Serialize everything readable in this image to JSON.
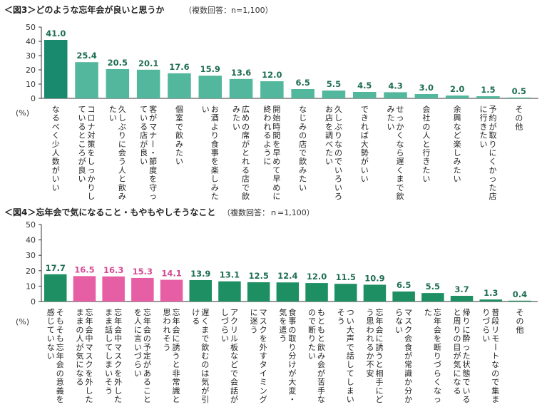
{
  "colors": {
    "chart1_primary": "#1a8a6e",
    "chart1_secondary": "#52b79c",
    "chart2_pink": "#e65ea3",
    "chart2_green": "#1e8f63",
    "label_green": "#1e6e52",
    "label_pink": "#d64a94"
  },
  "chart_data": [
    {
      "type": "bar",
      "title": "＜図3＞どのような忘年会が良いと思うか",
      "subtitle": "（複数回答：n=1,100）",
      "ylabel": "(%)",
      "ylim": [
        0,
        50
      ],
      "yticks": [
        0,
        10,
        20,
        30,
        40,
        50
      ],
      "grid": false,
      "categories": [
        "なるべく少人数がいい",
        "コロナ対策をしっかりしているところが良い",
        "久しぶりに会う人と飲みたい",
        "客がマナー・節度を守っている店が良い",
        "個室で飲みたい",
        "お酒より食事を楽しみたい",
        "広めの席がとれる店で飲みたい",
        "開始時間を早めて早めに終われるように",
        "なじみの店で飲みたい",
        "久しぶりなのでいろいろお店を調べたい",
        "できれば大勢がいい",
        "せっかくなら遅くまで飲みたい",
        "会社の人と行きたい",
        "余興など楽しみたい",
        "予約が取りにくかった店に行きたい",
        "その他"
      ],
      "values": [
        41.0,
        25.4,
        20.5,
        20.1,
        17.6,
        15.9,
        13.6,
        12.0,
        6.5,
        5.5,
        4.5,
        4.3,
        3.0,
        2.0,
        1.5,
        0.5
      ],
      "labels": [
        "41.0",
        "25.4",
        "20.5",
        "20.1",
        "17.6",
        "15.9",
        "13.6",
        "12.0",
        "6.5",
        "5.5",
        "4.5",
        "4.3",
        "3.0",
        "2.0",
        "1.5",
        "0.5"
      ],
      "highlight_indices": [
        0
      ]
    },
    {
      "type": "bar",
      "title": "＜図4＞忘年会で気になること・もやもやしそうなこと",
      "subtitle": "（複数回答：ｎ=1,100）",
      "ylabel": "(%)",
      "ylim": [
        0,
        50
      ],
      "yticks": [
        0,
        10,
        20,
        30,
        40,
        50
      ],
      "grid": false,
      "categories": [
        "そもそも忘年会の意義を感じていない",
        "忘年会中マスクを外したままの人が気になる",
        "忘年会中マスクを外したまま話してしまいそう",
        "忘年会の予定があることを人に言いづらい",
        "忘年会に誘うと非常識と思われそう",
        "遅くまで飲むのは気が引ける",
        "アクリル板などで会話がしづらい",
        "マスクを外すタイミングに迷う",
        "食事の取り分けが大変・気を遣う",
        "もともと飲み会が苦手なので断りたい",
        "つい大声で話してしまいそう",
        "忘年会に誘うと相手にどう思われるか不安",
        "マスク会食が常識か分からない",
        "忘年会を断りづらくなった",
        "帰りに酔った状態でいると周りの目が気になる",
        "普段リモートなので集まりづらい",
        "その他"
      ],
      "values": [
        17.7,
        16.5,
        16.3,
        15.3,
        14.1,
        13.9,
        13.1,
        12.5,
        12.4,
        12.0,
        11.5,
        10.9,
        6.5,
        5.5,
        3.7,
        1.3,
        0.4
      ],
      "labels": [
        "17.7",
        "16.5",
        "16.3",
        "15.3",
        "14.1",
        "13.9",
        "13.1",
        "12.5",
        "12.4",
        "12.0",
        "11.5",
        "10.9",
        "6.5",
        "5.5",
        "3.7",
        "1.3",
        "0.4"
      ],
      "highlight_indices": [
        1,
        2,
        3,
        4
      ]
    }
  ]
}
